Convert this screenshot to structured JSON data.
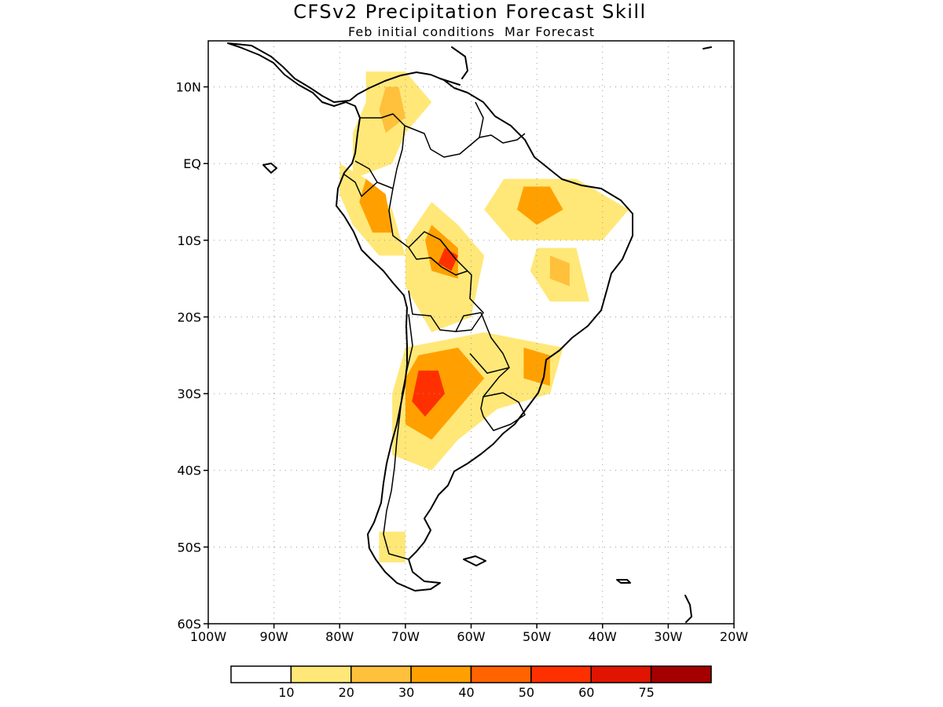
{
  "title": "CFSv2 Precipitation Forecast Skill",
  "subtitle": "Feb initial conditions  Mar Forecast",
  "axes": {
    "x_ticks": [
      "100W",
      "90W",
      "80W",
      "70W",
      "60W",
      "50W",
      "40W",
      "30W",
      "20W"
    ],
    "x_values": [
      -100,
      -90,
      -80,
      -70,
      -60,
      -50,
      -40,
      -30,
      -20
    ],
    "y_ticks": [
      "10N",
      "EQ",
      "10S",
      "20S",
      "30S",
      "40S",
      "50S",
      "60S"
    ],
    "y_values": [
      10,
      0,
      -10,
      -20,
      -30,
      -40,
      -50,
      -60
    ],
    "lon_range": [
      -100,
      -20
    ],
    "lat_range": [
      -60,
      16
    ],
    "grid": true
  },
  "colorbar": {
    "levels": [
      "10",
      "20",
      "30",
      "40",
      "50",
      "60",
      "75"
    ],
    "colors": [
      "#ffffff",
      "#ffe878",
      "#ffc03c",
      "#ffa000",
      "#ff6400",
      "#ff3000",
      "#e01400",
      "#a50000"
    ]
  },
  "chart_data": {
    "type": "heatmap",
    "units": "percent skill",
    "regions": [
      {
        "level": 1,
        "lonlat": [
          [
            -76,
            12
          ],
          [
            -70,
            12
          ],
          [
            -66,
            8
          ],
          [
            -70,
            4
          ],
          [
            -72,
            0
          ],
          [
            -78,
            -2
          ],
          [
            -78,
            4
          ],
          [
            -76,
            8
          ]
        ]
      },
      {
        "level": 2,
        "lonlat": [
          [
            -73,
            10
          ],
          [
            -71,
            10
          ],
          [
            -70,
            6
          ],
          [
            -73,
            4
          ],
          [
            -74,
            7
          ]
        ]
      },
      {
        "level": 1,
        "lonlat": [
          [
            -80,
            0
          ],
          [
            -76,
            -2
          ],
          [
            -72,
            -6
          ],
          [
            -70,
            -12
          ],
          [
            -74,
            -12
          ],
          [
            -78,
            -8
          ],
          [
            -80,
            -4
          ]
        ]
      },
      {
        "level": 3,
        "lonlat": [
          [
            -76,
            -2
          ],
          [
            -73,
            -4
          ],
          [
            -72,
            -9
          ],
          [
            -75,
            -9
          ],
          [
            -77,
            -5
          ]
        ]
      },
      {
        "level": 1,
        "lonlat": [
          [
            -66,
            -5
          ],
          [
            -62,
            -8
          ],
          [
            -58,
            -12
          ],
          [
            -60,
            -20
          ],
          [
            -66,
            -22
          ],
          [
            -70,
            -16
          ],
          [
            -70,
            -10
          ]
        ]
      },
      {
        "level": 3,
        "lonlat": [
          [
            -66,
            -8
          ],
          [
            -62,
            -11
          ],
          [
            -62,
            -15
          ],
          [
            -66,
            -14
          ],
          [
            -67,
            -10
          ]
        ]
      },
      {
        "level": 5,
        "lonlat": [
          [
            -64,
            -11
          ],
          [
            -62,
            -12
          ],
          [
            -63,
            -14
          ],
          [
            -65,
            -13
          ]
        ]
      },
      {
        "level": 1,
        "lonlat": [
          [
            -55,
            -2
          ],
          [
            -44,
            -2
          ],
          [
            -36,
            -6
          ],
          [
            -40,
            -10
          ],
          [
            -54,
            -10
          ],
          [
            -58,
            -6
          ]
        ]
      },
      {
        "level": 3,
        "lonlat": [
          [
            -52,
            -3
          ],
          [
            -48,
            -3
          ],
          [
            -46,
            -6
          ],
          [
            -50,
            -8
          ],
          [
            -53,
            -6
          ]
        ]
      },
      {
        "level": 1,
        "lonlat": [
          [
            -50,
            -11
          ],
          [
            -44,
            -11
          ],
          [
            -42,
            -18
          ],
          [
            -48,
            -18
          ],
          [
            -51,
            -14
          ]
        ]
      },
      {
        "level": 2,
        "lonlat": [
          [
            -48,
            -12
          ],
          [
            -45,
            -13
          ],
          [
            -45,
            -16
          ],
          [
            -48,
            -15
          ]
        ]
      },
      {
        "level": 1,
        "lonlat": [
          [
            -70,
            -24
          ],
          [
            -58,
            -22
          ],
          [
            -46,
            -24
          ],
          [
            -48,
            -30
          ],
          [
            -56,
            -32
          ],
          [
            -62,
            -36
          ],
          [
            -66,
            -40
          ],
          [
            -72,
            -38
          ],
          [
            -72,
            -30
          ]
        ]
      },
      {
        "level": 3,
        "lonlat": [
          [
            -68,
            -25
          ],
          [
            -62,
            -24
          ],
          [
            -58,
            -28
          ],
          [
            -62,
            -32
          ],
          [
            -66,
            -36
          ],
          [
            -70,
            -34
          ],
          [
            -70,
            -28
          ]
        ]
      },
      {
        "level": 5,
        "lonlat": [
          [
            -68,
            -27
          ],
          [
            -65,
            -27
          ],
          [
            -64,
            -30
          ],
          [
            -67,
            -33
          ],
          [
            -69,
            -31
          ]
        ]
      },
      {
        "level": 3,
        "lonlat": [
          [
            -52,
            -24
          ],
          [
            -48,
            -25
          ],
          [
            -48,
            -29
          ],
          [
            -52,
            -28
          ]
        ]
      },
      {
        "level": 1,
        "lonlat": [
          [
            -74,
            -48
          ],
          [
            -70,
            -48
          ],
          [
            -70,
            -52
          ],
          [
            -74,
            -52
          ]
        ]
      }
    ]
  }
}
